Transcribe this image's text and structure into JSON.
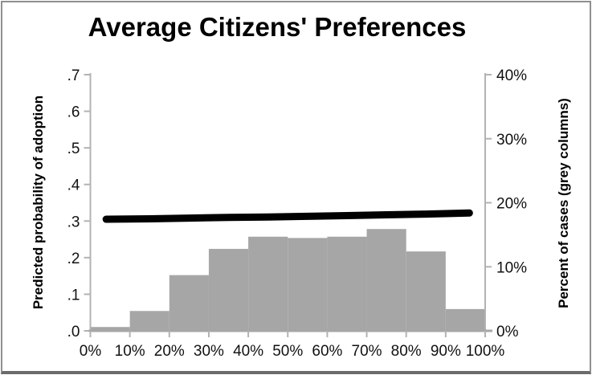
{
  "title": "Average Citizens' Preferences",
  "colors": {
    "bar_fill": "#a6a6a6",
    "line_stroke": "#000000",
    "axis_stroke": "#b3b3b3",
    "x_axis_stroke": "#a6a6a6",
    "text": "#000000",
    "frame_border": "#8f8f8f"
  },
  "chart_data": {
    "type": "combo-histogram-line",
    "title": "Average Citizens' Preferences",
    "x_axis": {
      "tick_labels": [
        "0%",
        "10%",
        "20%",
        "30%",
        "40%",
        "50%",
        "60%",
        "70%",
        "80%",
        "90%",
        "100%"
      ],
      "tick_values_pct": [
        0,
        10,
        20,
        30,
        40,
        50,
        60,
        70,
        80,
        90,
        100
      ],
      "range_pct": [
        0,
        100
      ],
      "grid": false
    },
    "left_axis": {
      "label": "Predicted probability of adoption",
      "tick_labels": [
        ".7",
        ".6",
        ".5",
        ".4",
        ".3",
        ".2",
        ".1",
        ".0"
      ],
      "tick_values": [
        0.7,
        0.6,
        0.5,
        0.4,
        0.3,
        0.2,
        0.1,
        0.0
      ],
      "range": [
        0,
        0.7
      ]
    },
    "right_axis": {
      "label": "Percent of cases (grey columns)",
      "tick_labels": [
        "40%",
        "30%",
        "20%",
        "10%",
        "0%"
      ],
      "tick_values_pct": [
        40,
        30,
        20,
        10,
        0
      ],
      "range_pct": [
        0,
        40
      ]
    },
    "bars": {
      "name": "Percent of cases (grey columns)",
      "axis": "right",
      "bin_start_pct": [
        0,
        10,
        20,
        30,
        40,
        50,
        60,
        70,
        80,
        90
      ],
      "bin_width_pct": 10,
      "values_pct": [
        0.6,
        3.1,
        8.7,
        12.8,
        14.7,
        14.5,
        14.7,
        15.9,
        12.4,
        3.4
      ]
    },
    "line": {
      "name": "Predicted probability of adoption",
      "axis": "left",
      "x_pct": [
        4,
        15,
        25,
        35,
        45,
        55,
        65,
        75,
        85,
        96
      ],
      "y": [
        0.305,
        0.306,
        0.308,
        0.31,
        0.311,
        0.313,
        0.315,
        0.317,
        0.319,
        0.322
      ]
    },
    "legend": "none"
  }
}
